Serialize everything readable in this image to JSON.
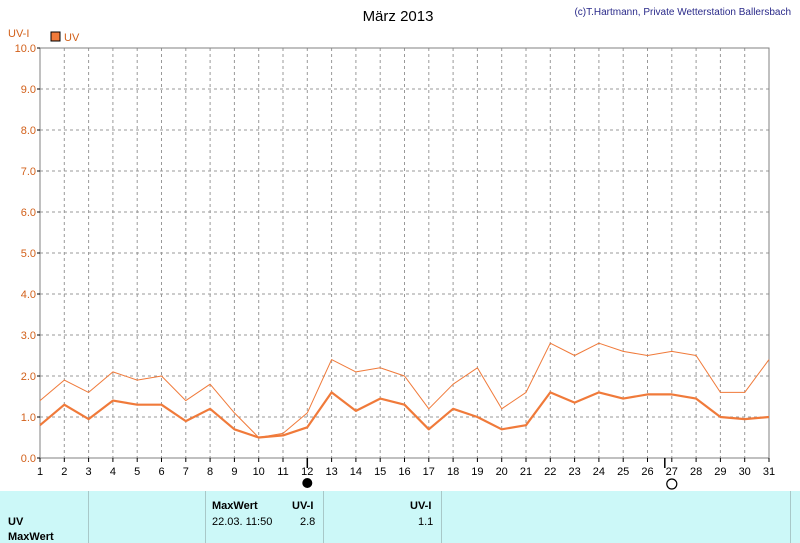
{
  "header": {
    "title": "März 2013",
    "copyright": "(c)T.Hartmann, Private Wetterstation Ballersbach"
  },
  "colors": {
    "series": "#f07a3a",
    "axis_text": "#d2601a",
    "grid": "#999999",
    "table_bg": "#ccf8f8"
  },
  "chart_data": {
    "type": "line",
    "title": "März 2013",
    "ylabel": "UV-I",
    "ylim": [
      0,
      10
    ],
    "yticks": [
      "0.0",
      "1.0",
      "2.0",
      "3.0",
      "4.0",
      "5.0",
      "6.0",
      "7.0",
      "8.0",
      "9.0",
      "10.0"
    ],
    "x": [
      1,
      2,
      3,
      4,
      5,
      6,
      7,
      8,
      9,
      10,
      11,
      12,
      13,
      14,
      15,
      16,
      17,
      18,
      19,
      20,
      21,
      22,
      23,
      24,
      25,
      26,
      27,
      28,
      29,
      30,
      31
    ],
    "legend": [
      "UV"
    ],
    "legend_position": "top-left",
    "grid": true,
    "moon_phases": [
      {
        "type": "new-moon",
        "day": 12
      },
      {
        "type": "full-moon",
        "day": 27
      }
    ],
    "series": [
      {
        "name": "UV",
        "kind": "daily-max",
        "values": [
          1.4,
          1.9,
          1.6,
          2.1,
          1.9,
          2.0,
          1.4,
          1.8,
          1.1,
          0.5,
          0.6,
          1.1,
          2.4,
          2.1,
          2.2,
          2.0,
          1.2,
          1.8,
          2.2,
          1.2,
          1.6,
          2.8,
          2.5,
          2.8,
          2.6,
          2.5,
          2.6,
          2.5,
          1.6,
          1.6,
          2.4
        ]
      },
      {
        "name": "UV",
        "kind": "daily-mean",
        "values": [
          0.8,
          1.3,
          0.95,
          1.4,
          1.3,
          1.3,
          0.9,
          1.2,
          0.7,
          0.5,
          0.55,
          0.75,
          1.6,
          1.15,
          1.45,
          1.3,
          0.7,
          1.2,
          1.0,
          0.7,
          0.8,
          1.6,
          1.35,
          1.6,
          1.45,
          1.55,
          1.55,
          1.45,
          1.0,
          0.95,
          1.0
        ]
      }
    ]
  },
  "table": {
    "row_label_1": "UV",
    "row_label_2": "MaxWert",
    "max_header": "MaxWert",
    "unit_header_1": "UV-I",
    "unit_header_2": "UV-I",
    "max_datetime": "22.03.  11:50",
    "max_value": "2.8",
    "mean_value": "1.1"
  }
}
